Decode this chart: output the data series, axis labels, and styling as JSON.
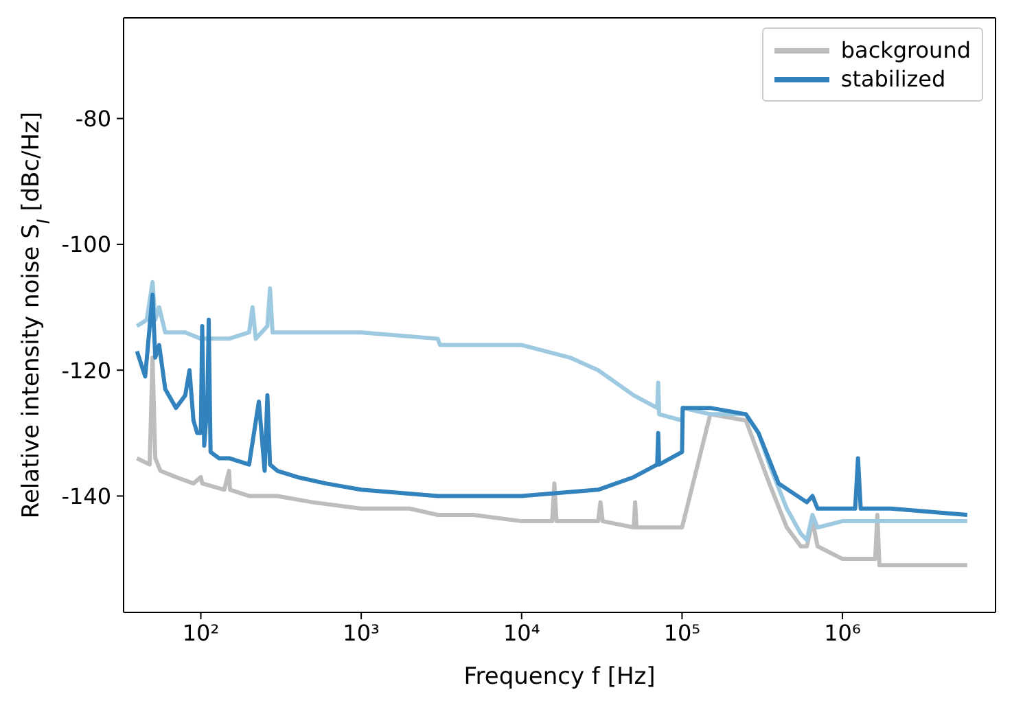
{
  "chart_data": {
    "type": "line",
    "xlabel": "Frequency f [Hz]",
    "ylabel": "Relative intensity noise S$_{I}$ [dBc/Hz]",
    "log": "x",
    "xlim": [
      33,
      9000000
    ],
    "ylim": [
      -158.5,
      -64
    ],
    "xticks": [
      {
        "value": 100,
        "label": "10²"
      },
      {
        "value": 1000,
        "label": "10³"
      },
      {
        "value": 10000,
        "label": "10⁴"
      },
      {
        "value": 100000,
        "label": "10⁵"
      },
      {
        "value": 1000000,
        "label": "10⁶"
      }
    ],
    "yticks": [
      -140,
      -120,
      -100,
      -80
    ],
    "legend": "top right",
    "line_style": "solid",
    "marker": "none",
    "series": [
      {
        "name": "background",
        "color": "#bdbdbd",
        "x": [
          40,
          48,
          50,
          52,
          56,
          70,
          90,
          100,
          102,
          140,
          150,
          152,
          200,
          300,
          500,
          1000,
          2000,
          3000,
          5000,
          10000,
          15500,
          16000,
          16500,
          30000,
          31000,
          32000,
          50000,
          51000,
          52000,
          100000,
          150000,
          250000,
          350000,
          450000,
          550000,
          600000,
          650000,
          700000,
          1000000,
          1600000,
          1650000,
          1700000,
          3000000,
          6000000
        ],
        "values": [
          -134,
          -135,
          -118,
          -134,
          -136,
          -137,
          -138,
          -137,
          -138,
          -139,
          -136,
          -139,
          -140,
          -140,
          -141,
          -142,
          -142,
          -143,
          -143,
          -144,
          -144,
          -138,
          -144,
          -144,
          -141,
          -144,
          -145,
          -141,
          -145,
          -145,
          -127,
          -128,
          -138,
          -145,
          -148,
          -148,
          -144,
          -148,
          -150,
          -150,
          -143,
          -151,
          -151,
          -151
        ]
      },
      {
        "color": "#9ecae1",
        "x": [
          40,
          46,
          50,
          52,
          55,
          60,
          80,
          100,
          150,
          200,
          210,
          220,
          260,
          270,
          280,
          400,
          1000,
          3000,
          3100,
          5000,
          10000,
          20000,
          30000,
          50000,
          70000,
          71000,
          72000,
          100000,
          101000,
          150000,
          250000,
          300000,
          350000,
          450000,
          550000,
          600000,
          650000,
          700000,
          1000000,
          2000000,
          6000000
        ],
        "values": [
          -113,
          -112,
          -106,
          -112,
          -110,
          -114,
          -114,
          -115,
          -115,
          -114,
          -110,
          -115,
          -113,
          -107,
          -114,
          -114,
          -114,
          -115,
          -116,
          -116,
          -116,
          -118,
          -120,
          -124,
          -126,
          -122,
          -127,
          -128,
          -126,
          -127,
          -127,
          -130,
          -135,
          -142,
          -146,
          -147,
          -143,
          -145,
          -144,
          -144,
          -144
        ]
      },
      {
        "name": "stabilized",
        "color": "#3182bd",
        "x": [
          40,
          45,
          50,
          52,
          55,
          60,
          70,
          80,
          85,
          90,
          95,
          100,
          102,
          105,
          110,
          112,
          115,
          130,
          150,
          200,
          230,
          250,
          260,
          270,
          300,
          400,
          600,
          1000,
          3000,
          10000,
          30000,
          50000,
          70000,
          71000,
          72000,
          100000,
          101000,
          150000,
          250000,
          300000,
          400000,
          600000,
          650000,
          700000,
          1000000,
          1200000,
          1250000,
          1300000,
          2000000,
          6000000
        ],
        "values": [
          -117,
          -121,
          -108,
          -118,
          -116,
          -123,
          -126,
          -124,
          -120,
          -128,
          -130,
          -130,
          -113,
          -132,
          -125,
          -112,
          -133,
          -134,
          -134,
          -135,
          -125,
          -136,
          -124,
          -135,
          -136,
          -137,
          -138,
          -139,
          -140,
          -140,
          -139,
          -137,
          -135,
          -130,
          -135,
          -133,
          -126,
          -126,
          -127,
          -130,
          -138,
          -141,
          -140,
          -142,
          -142,
          -142,
          -134,
          -142,
          -142,
          -143
        ]
      }
    ]
  }
}
